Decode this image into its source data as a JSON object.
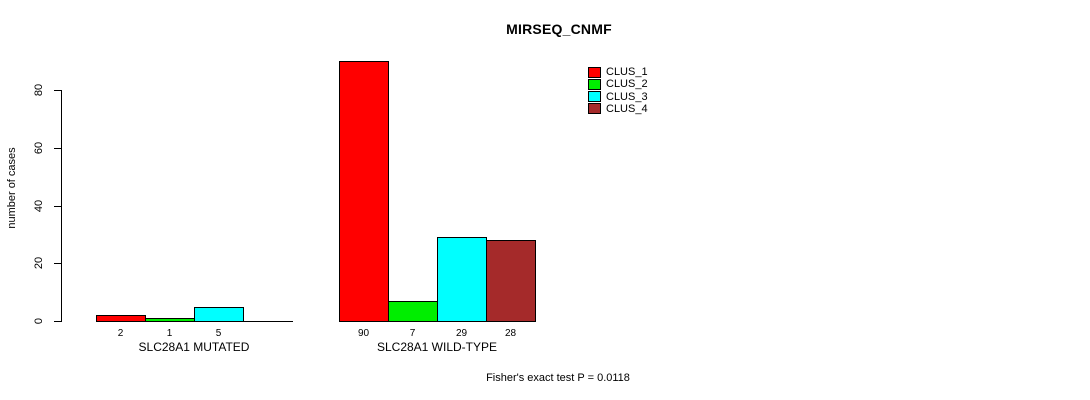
{
  "title": "MIRSEQ_CNMF",
  "y_axis": {
    "label": "number of cases",
    "ticks": [
      0,
      20,
      40,
      60,
      80
    ]
  },
  "footer": "Fisher's exact test P = 0.0118",
  "legend": {
    "items": [
      {
        "label": "CLUS_1",
        "color": "#FF0000"
      },
      {
        "label": "CLUS_2",
        "color": "#00EE00"
      },
      {
        "label": "CLUS_3",
        "color": "#00FFFF"
      },
      {
        "label": "CLUS_4",
        "color": "#A52A2A"
      }
    ]
  },
  "chart_data": {
    "type": "bar",
    "title": "MIRSEQ_CNMF",
    "ylabel": "number of cases",
    "xlabel": "",
    "categories": [
      "SLC28A1 MUTATED",
      "SLC28A1 WILD-TYPE"
    ],
    "series": [
      {
        "name": "CLUS_1",
        "color": "#FF0000",
        "values": [
          2,
          90
        ]
      },
      {
        "name": "CLUS_2",
        "color": "#00EE00",
        "values": [
          1,
          7
        ]
      },
      {
        "name": "CLUS_3",
        "color": "#00FFFF",
        "values": [
          5,
          29
        ]
      },
      {
        "name": "CLUS_4",
        "color": "#A52A2A",
        "values": [
          0,
          28
        ]
      }
    ],
    "value_labels": [
      [
        "2",
        "1",
        "5",
        ""
      ],
      [
        "90",
        "7",
        "29",
        "28"
      ]
    ],
    "ylim": [
      0,
      80
    ],
    "yticks": [
      0,
      20,
      40,
      60,
      80
    ],
    "grid": false,
    "legend_position": "top-right",
    "annotation": "Fisher's exact test P = 0.0118"
  }
}
